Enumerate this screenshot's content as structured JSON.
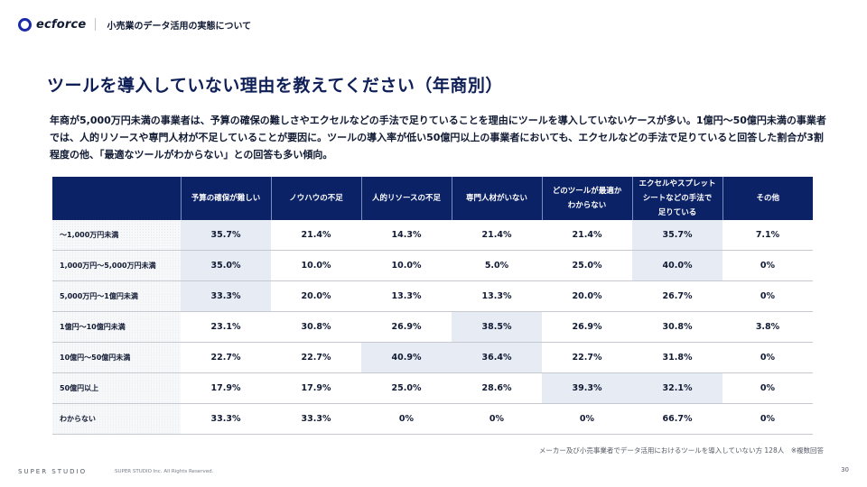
{
  "header": {
    "logo_text": "ecforce",
    "logo_color": "#1a2aa8",
    "deck_title": "小売業のデータ活用の実態について"
  },
  "page_title": "ツールを導入していない理由を教えてください（年商別）",
  "summary": "年商が5,000万円未満の事業者は、予算の確保の難しさやエクセルなどの手法で足りていることを理由にツールを導入していないケースが多い。1億円〜50億円未満の事業者では、人的リソースや専門人材が不足していることが要因に。ツールの導入率が低い50億円以上の事業者においても、エクセルなどの手法で足りていると回答した割合が3割程度の他、「最適なツールがわからない」との回答も多い傾向。",
  "table": {
    "header_color": "#0c2266",
    "highlight_color": "#e7ebf3",
    "columns": [
      "",
      "予算の確保が難しい",
      "ノウハウの不足",
      "人的リソースの不足",
      "専門人材がいない",
      "どのツールが最適か\nわからない",
      "エクセルやスプレット\nシートなどの手法で\n足りている",
      "その他"
    ],
    "rows": [
      {
        "label": "〜1,000万円未満",
        "values": [
          "35.7%",
          "21.4%",
          "14.3%",
          "21.4%",
          "21.4%",
          "35.7%",
          "7.1%"
        ],
        "highlight": [
          0,
          5
        ]
      },
      {
        "label": "1,000万円〜5,000万円未満",
        "values": [
          "35.0%",
          "10.0%",
          "10.0%",
          "5.0%",
          "25.0%",
          "40.0%",
          "0%"
        ],
        "highlight": [
          0,
          5
        ]
      },
      {
        "label": "5,000万円〜1億円未満",
        "values": [
          "33.3%",
          "20.0%",
          "13.3%",
          "13.3%",
          "20.0%",
          "26.7%",
          "0%"
        ],
        "highlight": [
          0
        ]
      },
      {
        "label": "1億円〜10億円未満",
        "values": [
          "23.1%",
          "30.8%",
          "26.9%",
          "38.5%",
          "26.9%",
          "30.8%",
          "3.8%"
        ],
        "highlight": [
          3
        ]
      },
      {
        "label": "10億円〜50億円未満",
        "values": [
          "22.7%",
          "22.7%",
          "40.9%",
          "36.4%",
          "22.7%",
          "31.8%",
          "0%"
        ],
        "highlight": [
          2,
          3
        ]
      },
      {
        "label": "50億円以上",
        "values": [
          "17.9%",
          "17.9%",
          "25.0%",
          "28.6%",
          "39.3%",
          "32.1%",
          "0%"
        ],
        "highlight": [
          4,
          5
        ]
      },
      {
        "label": "わからない",
        "values": [
          "33.3%",
          "33.3%",
          "0%",
          "0%",
          "0%",
          "66.7%",
          "0%"
        ],
        "highlight": []
      }
    ]
  },
  "note": "メーカー及び小売事業者でデータ活用におけるツールを導入していない方 128人　※複数回答",
  "footer": {
    "brand": "SUPER STUDIO",
    "copyright": "SUPER STUDIO Inc. All Rights Reserved.",
    "page_number": "30"
  }
}
